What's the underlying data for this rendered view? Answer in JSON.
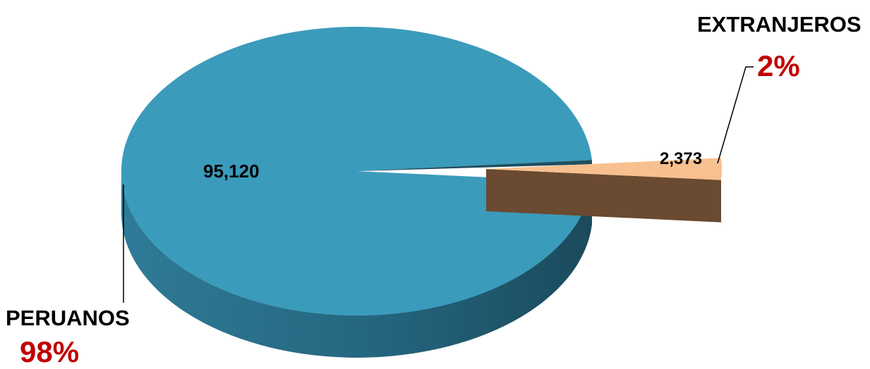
{
  "chart_data": {
    "type": "pie",
    "title": "",
    "slices": [
      {
        "name": "PERUANOS",
        "value": 95120,
        "value_label": "95,120",
        "percent_label": "98%",
        "color": "#3B9BBB",
        "side_color": "#2A7391"
      },
      {
        "name": "EXTRANJEROS",
        "value": 2373,
        "value_label": "2,373",
        "percent_label": "2%",
        "color": "#F8C08E",
        "side_color": "#6A4A30"
      }
    ],
    "style": {
      "3d": true,
      "exploded_slice": "EXTRANJEROS"
    },
    "colors": {
      "label": "#000000",
      "percent": "#C00000",
      "inner_edge": "#1F4E60"
    }
  }
}
